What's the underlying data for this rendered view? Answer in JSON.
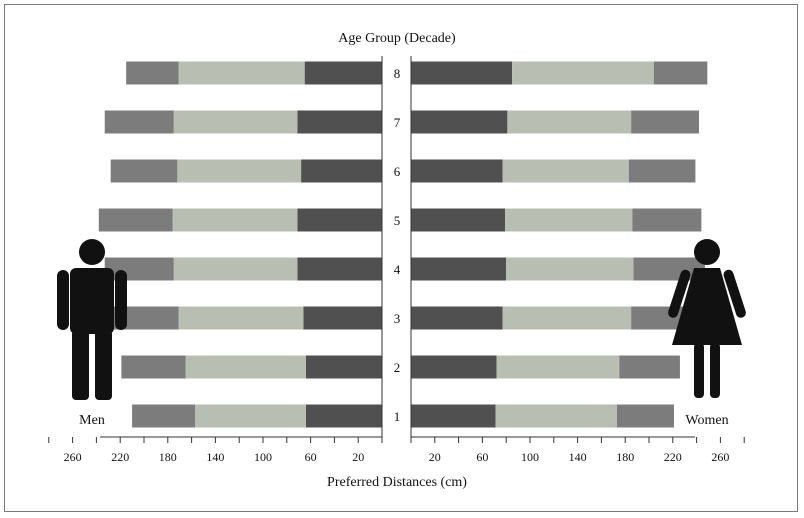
{
  "chart_data": {
    "type": "bar",
    "orientation": "horizontal-back-to-back",
    "title": "Age Group (Decade)",
    "xlabel": "Preferred Distances (cm)",
    "categories": [
      "1",
      "2",
      "3",
      "4",
      "5",
      "6",
      "7",
      "8"
    ],
    "xlim": [
      0,
      280
    ],
    "men_ticks": [
      "260",
      "220",
      "180",
      "140",
      "100",
      "60",
      "20"
    ],
    "women_ticks": [
      "20",
      "60",
      "100",
      "140",
      "180",
      "220",
      "260"
    ],
    "tick_values": [
      20,
      60,
      100,
      140,
      180,
      220,
      260
    ],
    "segment_colors": [
      "#505050",
      "#b9beb3",
      "#7c7c7c"
    ],
    "men": {
      "name": "Men",
      "segments": [
        {
          "values": [
            64,
            64,
            66,
            71,
            71,
            68,
            71,
            65
          ]
        },
        {
          "values": [
            93,
            101,
            105,
            104,
            105,
            104,
            104,
            106
          ]
        },
        {
          "values": [
            53,
            54,
            56,
            58,
            62,
            56,
            58,
            44
          ]
        }
      ]
    },
    "women": {
      "name": "Women",
      "segments": [
        {
          "values": [
            71,
            72,
            77,
            80,
            79,
            77,
            81,
            85
          ]
        },
        {
          "values": [
            102,
            103,
            108,
            107,
            107,
            106,
            104,
            119
          ]
        },
        {
          "values": [
            48,
            51,
            58,
            60,
            58,
            56,
            57,
            45
          ]
        }
      ]
    },
    "icons": [
      "man-figure-icon",
      "woman-figure-icon"
    ],
    "grid": false
  }
}
